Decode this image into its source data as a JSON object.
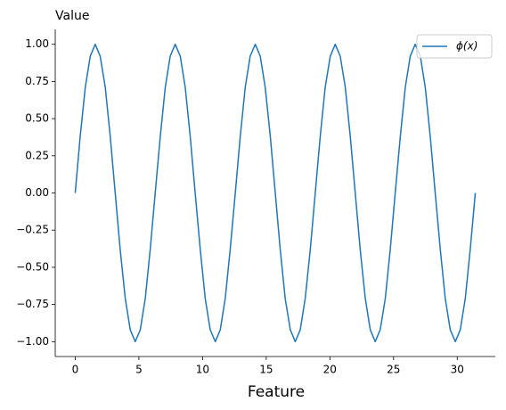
{
  "chart_data": {
    "type": "line",
    "title": "Value",
    "x_label": "Feature",
    "x": [
      0,
      0.39,
      0.79,
      1.18,
      1.57,
      1.96,
      2.36,
      2.75,
      3.14,
      3.53,
      3.93,
      4.32,
      4.71,
      5.11,
      5.5,
      5.89,
      6.28,
      6.68,
      7.07,
      7.46,
      7.85,
      8.25,
      8.64,
      9.03,
      9.42,
      9.82,
      10.21,
      10.6,
      11.0,
      11.39,
      11.78,
      12.17,
      12.57,
      12.96,
      13.35,
      13.74,
      14.14,
      14.53,
      14.92,
      15.32,
      15.71,
      16.1,
      16.49,
      16.89,
      17.28,
      17.67,
      18.06,
      18.46,
      18.85,
      19.24,
      19.63,
      20.03,
      20.42,
      20.81,
      21.21,
      21.6,
      21.99,
      22.38,
      22.78,
      23.17,
      23.56,
      23.95,
      24.35,
      24.74,
      25.13,
      25.53,
      25.92,
      26.31,
      26.7,
      27.1,
      27.49,
      27.88,
      28.27,
      28.67,
      29.06,
      29.45,
      29.85,
      30.24,
      30.63,
      31.02,
      31.42
    ],
    "series": [
      {
        "name": "ϕ(x)",
        "color": "#1f77b4",
        "values": [
          0,
          0.38,
          0.71,
          0.92,
          1,
          0.92,
          0.71,
          0.38,
          0,
          -0.38,
          -0.71,
          -0.92,
          -1,
          -0.92,
          -0.71,
          -0.38,
          0,
          0.38,
          0.71,
          0.92,
          1,
          0.92,
          0.71,
          0.38,
          0,
          -0.38,
          -0.71,
          -0.92,
          -1,
          -0.92,
          -0.71,
          -0.38,
          0,
          0.38,
          0.71,
          0.92,
          1,
          0.92,
          0.71,
          0.38,
          0,
          -0.38,
          -0.71,
          -0.92,
          -1,
          -0.92,
          -0.71,
          -0.38,
          0,
          0.38,
          0.71,
          0.92,
          1,
          0.92,
          0.71,
          0.38,
          0,
          -0.38,
          -0.71,
          -0.92,
          -1,
          -0.92,
          -0.71,
          -0.38,
          0,
          0.38,
          0.71,
          0.92,
          1,
          0.92,
          0.71,
          0.38,
          0,
          -0.38,
          -0.71,
          -0.92,
          -1,
          -0.92,
          -0.71,
          -0.38,
          0
        ]
      }
    ],
    "xlim": [
      -1.57,
      32.99
    ],
    "xticks": [
      0,
      5,
      10,
      15,
      20,
      25,
      30
    ],
    "ylim": [
      -1.1,
      1.1
    ],
    "yticks": [
      {
        "value": -1,
        "label": "−1.00"
      },
      {
        "value": -0.75,
        "label": "−0.75"
      },
      {
        "value": -0.5,
        "label": "−0.50"
      },
      {
        "value": -0.25,
        "label": "−0.25"
      },
      {
        "value": 0,
        "label": "0.00"
      },
      {
        "value": 0.25,
        "label": "0.25"
      },
      {
        "value": 0.5,
        "label": "0.50"
      },
      {
        "value": 0.75,
        "label": "0.75"
      },
      {
        "value": 1,
        "label": "1.00"
      }
    ],
    "legend": "upper right"
  }
}
